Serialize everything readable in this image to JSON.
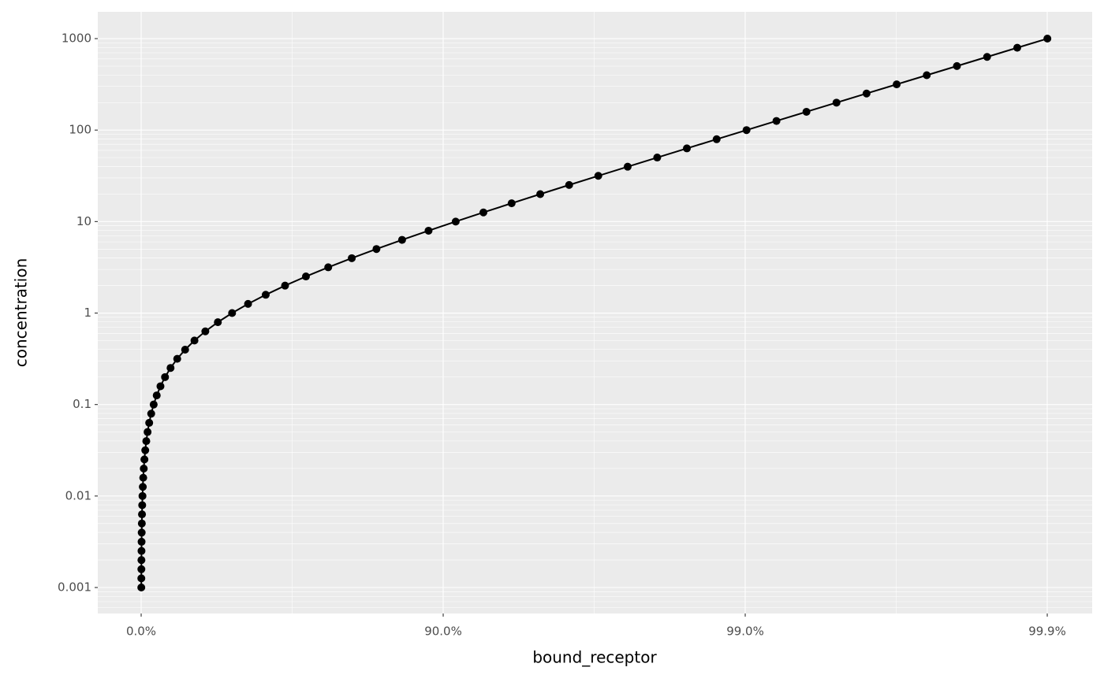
{
  "chart_data": {
    "type": "line",
    "markers": true,
    "color": "#000000",
    "x_label": "bound_receptor",
    "y_label": "concentration",
    "x_scale": "-log10(1-x)",
    "y_scale": "log",
    "grid": true,
    "minor_grid": true,
    "x": [
      0.000999,
      0.00125735,
      0.00158238,
      0.00199129,
      0.0025056,
      0.00315231,
      0.00396528,
      0.00498688,
      0.00627001,
      0.00788068,
      0.00990099,
      0.0124328,
      0.0156016,
      0.0195623,
      0.0245034,
      0.0306534,
      0.0382865,
      0.0477267,
      0.059351,
      0.0735874,
      0.0909091,
      0.111816,
      0.136806,
      0.166338,
      0.200759,
      0.240255,
      0.284747,
      0.333861,
      0.386866,
      0.442688,
      0.5,
      0.557312,
      0.613134,
      0.666139,
      0.715253,
      0.759745,
      0.799241,
      0.833662,
      0.863194,
      0.888184,
      0.909091,
      0.926413,
      0.940649,
      0.952273,
      0.961714,
      0.969347,
      0.975497,
      0.980438,
      0.984398,
      0.987567,
      0.990099,
      0.992119,
      0.99373,
      0.995013,
      0.996035,
      0.996848,
      0.997494,
      0.998009,
      0.998418,
      0.998743,
      0.999001
    ],
    "values": [
      0.001,
      0.00125893,
      0.00158489,
      0.00199526,
      0.00251189,
      0.00316228,
      0.00398107,
      0.00501187,
      0.00630957,
      0.00794328,
      0.01,
      0.0125893,
      0.0158489,
      0.0199526,
      0.0251189,
      0.0316228,
      0.0398107,
      0.0501187,
      0.0630957,
      0.0794328,
      0.1,
      0.125893,
      0.158489,
      0.199526,
      0.251189,
      0.316228,
      0.398107,
      0.501187,
      0.630957,
      0.794328,
      1,
      1.25893,
      1.58489,
      1.99526,
      2.51189,
      3.16228,
      3.98107,
      5.01187,
      6.30957,
      7.94328,
      10,
      12.5893,
      15.8489,
      19.9526,
      25.1189,
      31.6228,
      39.8107,
      50.1187,
      63.0957,
      79.4328,
      100,
      125.893,
      158.489,
      199.526,
      251.189,
      316.228,
      398.107,
      501.187,
      630.957,
      794.328,
      1000
    ],
    "xlim": [
      -0.392,
      0.99929
    ],
    "xticks": [
      {
        "value": 0,
        "label": "0.0%"
      },
      {
        "value": 0.9,
        "label": "90.0%"
      },
      {
        "value": 0.99,
        "label": "99.0%"
      },
      {
        "value": 0.999,
        "label": "99.9%"
      }
    ],
    "ylim": [
      0.00052,
      1963
    ],
    "yticks": [
      0.001,
      0.01,
      0.1,
      1,
      10,
      100,
      1000
    ]
  }
}
